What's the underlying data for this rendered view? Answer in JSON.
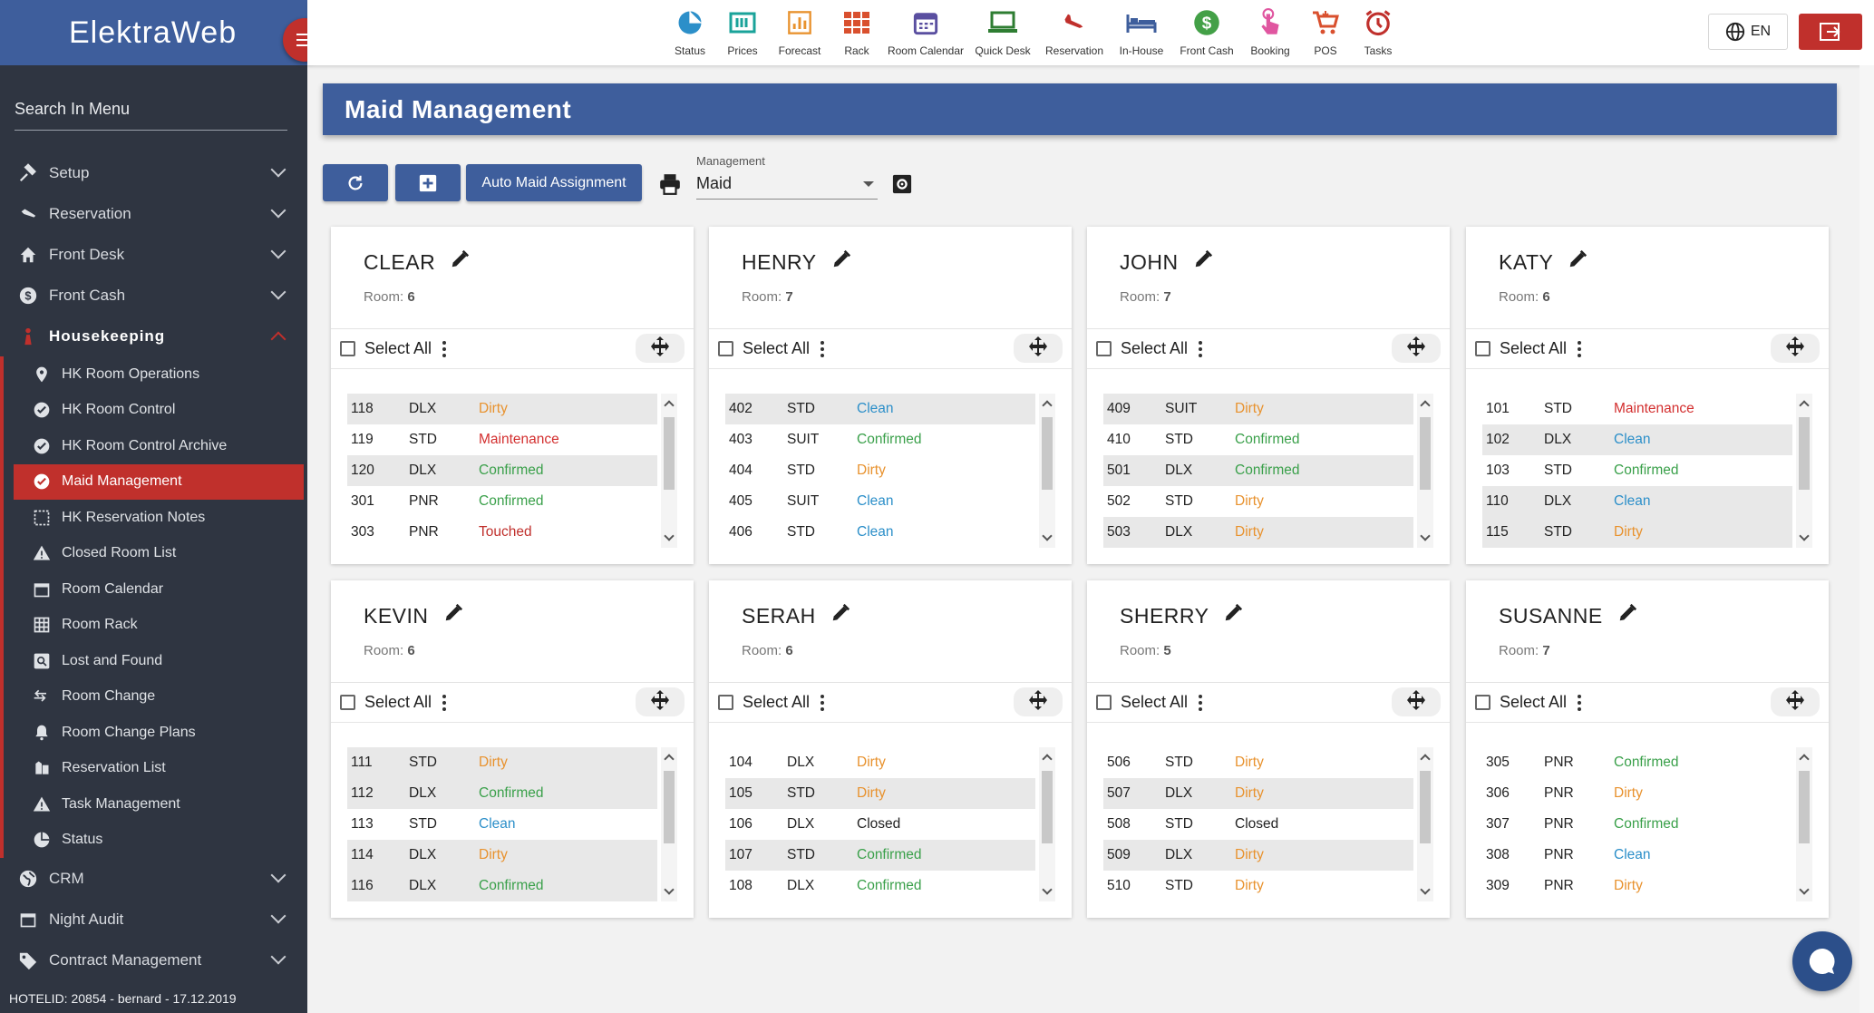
{
  "app": {
    "brand": "ElektraWeb"
  },
  "sidebar": {
    "search_label": "Search In Menu",
    "items": [
      {
        "label": "Setup",
        "icon": "gavel-icon"
      },
      {
        "label": "Reservation",
        "icon": "plane-landing-icon"
      },
      {
        "label": "Front Desk",
        "icon": "home-icon"
      },
      {
        "label": "Front Cash",
        "icon": "dollar-icon"
      },
      {
        "label": "Housekeeping",
        "icon": "maid-icon"
      }
    ],
    "housekeeping_sub": [
      {
        "label": "HK Room Operations",
        "icon": "location-pin-icon"
      },
      {
        "label": "HK Room Control",
        "icon": "check-circle-icon"
      },
      {
        "label": "HK Room Control Archive",
        "icon": "check-circle-icon"
      },
      {
        "label": "Maid Management",
        "icon": "check-circle-icon"
      },
      {
        "label": "HK Reservation Notes",
        "icon": "notes-icon"
      },
      {
        "label": "Closed Room List",
        "icon": "warning-icon"
      },
      {
        "label": "Room Calendar",
        "icon": "calendar-icon"
      },
      {
        "label": "Room Rack",
        "icon": "grid-icon"
      },
      {
        "label": "Lost and Found",
        "icon": "search-box-icon"
      },
      {
        "label": "Room Change",
        "icon": "arrows-icon"
      },
      {
        "label": "Room Change Plans",
        "icon": "bell-icon"
      },
      {
        "label": "Reservation List",
        "icon": "list-icon"
      },
      {
        "label": "Task Management",
        "icon": "warning-icon"
      },
      {
        "label": "Status",
        "icon": "pie-icon"
      }
    ],
    "bottom_items": [
      {
        "label": "CRM",
        "icon": "globe-icon"
      },
      {
        "label": "Night Audit",
        "icon": "calendar-icon"
      },
      {
        "label": "Contract Management",
        "icon": "tag-icon"
      }
    ],
    "footer": "HOTELID: 20854 - bernard - 17.12.2019"
  },
  "topbar": {
    "items": [
      {
        "label": "Status",
        "icon": "pie-chart-icon",
        "color": "#2c8fc9"
      },
      {
        "label": "Prices",
        "icon": "price-tag-icon",
        "color": "#1aa39a"
      },
      {
        "label": "Forecast",
        "icon": "bar-chart-icon",
        "color": "#e8922e"
      },
      {
        "label": "Rack",
        "icon": "rack-grid-icon",
        "color": "#d9502e"
      },
      {
        "label": "Room Calendar",
        "icon": "calendar-icon",
        "color": "#5a4fa0"
      },
      {
        "label": "Quick Desk",
        "icon": "laptop-icon",
        "color": "#2e7d32"
      },
      {
        "label": "Reservation",
        "icon": "plane-landing-icon",
        "color": "#c0302c"
      },
      {
        "label": "In-House",
        "icon": "bed-icon",
        "color": "#3e5e9c"
      },
      {
        "label": "Front Cash",
        "icon": "dollar-circle-icon",
        "color": "#43a047"
      },
      {
        "label": "Booking",
        "icon": "touch-icon",
        "color": "#e056a0"
      },
      {
        "label": "POS",
        "icon": "cart-icon",
        "color": "#d9502e"
      },
      {
        "label": "Tasks",
        "icon": "alarm-icon",
        "color": "#c0302c"
      }
    ],
    "lang": "EN"
  },
  "page": {
    "title": "Maid Management",
    "auto_btn": "Auto Maid Assignment",
    "mgmt_label": "Management",
    "mgmt_value": "Maid"
  },
  "select_all": "Select All",
  "room_label": "Room:",
  "maids": [
    {
      "name": "CLEAR",
      "count": "6",
      "rooms": [
        [
          "118",
          "DLX",
          "Dirty"
        ],
        [
          "119",
          "STD",
          "Maintenance"
        ],
        [
          "120",
          "DLX",
          "Confirmed"
        ],
        [
          "301",
          "PNR",
          "Confirmed"
        ],
        [
          "303",
          "PNR",
          "Touched"
        ]
      ],
      "alt": [
        0,
        2
      ]
    },
    {
      "name": "HENRY",
      "count": "7",
      "rooms": [
        [
          "402",
          "STD",
          "Clean"
        ],
        [
          "403",
          "SUIT",
          "Confirmed"
        ],
        [
          "404",
          "STD",
          "Dirty"
        ],
        [
          "405",
          "SUIT",
          "Clean"
        ],
        [
          "406",
          "STD",
          "Clean"
        ]
      ],
      "alt": [
        0
      ]
    },
    {
      "name": "JOHN",
      "count": "7",
      "rooms": [
        [
          "409",
          "SUIT",
          "Dirty"
        ],
        [
          "410",
          "STD",
          "Confirmed"
        ],
        [
          "501",
          "DLX",
          "Confirmed"
        ],
        [
          "502",
          "STD",
          "Dirty"
        ],
        [
          "503",
          "DLX",
          "Dirty"
        ]
      ],
      "alt": [
        0,
        2,
        4
      ]
    },
    {
      "name": "KATY",
      "count": "6",
      "rooms": [
        [
          "101",
          "STD",
          "Maintenance"
        ],
        [
          "102",
          "DLX",
          "Clean"
        ],
        [
          "103",
          "STD",
          "Confirmed"
        ],
        [
          "110",
          "DLX",
          "Clean"
        ],
        [
          "115",
          "STD",
          "Dirty"
        ]
      ],
      "alt": [
        1,
        3,
        4
      ]
    },
    {
      "name": "KEVIN",
      "count": "6",
      "rooms": [
        [
          "111",
          "STD",
          "Dirty"
        ],
        [
          "112",
          "DLX",
          "Confirmed"
        ],
        [
          "113",
          "STD",
          "Clean"
        ],
        [
          "114",
          "DLX",
          "Dirty"
        ],
        [
          "116",
          "DLX",
          "Confirmed"
        ]
      ],
      "alt": [
        0,
        1,
        3,
        4
      ]
    },
    {
      "name": "SERAH",
      "count": "6",
      "rooms": [
        [
          "104",
          "DLX",
          "Dirty"
        ],
        [
          "105",
          "STD",
          "Dirty"
        ],
        [
          "106",
          "DLX",
          "Closed"
        ],
        [
          "107",
          "STD",
          "Confirmed"
        ],
        [
          "108",
          "DLX",
          "Confirmed"
        ]
      ],
      "alt": [
        1,
        3
      ]
    },
    {
      "name": "SHERRY",
      "count": "5",
      "rooms": [
        [
          "506",
          "STD",
          "Dirty"
        ],
        [
          "507",
          "DLX",
          "Dirty"
        ],
        [
          "508",
          "STD",
          "Closed"
        ],
        [
          "509",
          "DLX",
          "Dirty"
        ],
        [
          "510",
          "STD",
          "Dirty"
        ]
      ],
      "alt": [
        1,
        3
      ]
    },
    {
      "name": "SUSANNE",
      "count": "7",
      "rooms": [
        [
          "305",
          "PNR",
          "Confirmed"
        ],
        [
          "306",
          "PNR",
          "Dirty"
        ],
        [
          "307",
          "PNR",
          "Confirmed"
        ],
        [
          "308",
          "PNR",
          "Clean"
        ],
        [
          "309",
          "PNR",
          "Dirty"
        ]
      ],
      "alt": []
    }
  ],
  "colors": {
    "brand_blue": "#3e5e9c",
    "accent_red": "#c0302c",
    "dirty": "#e8922e",
    "clean": "#2c8fc9",
    "confirmed": "#3aa04a",
    "maintenance": "#d32f2f"
  }
}
